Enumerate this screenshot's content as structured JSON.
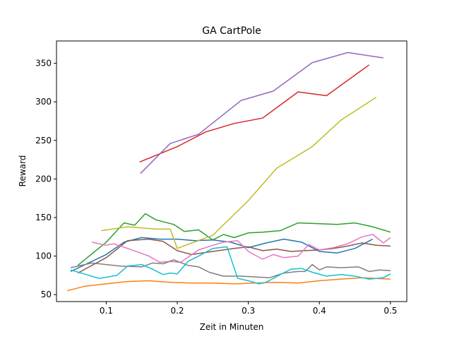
{
  "chart_data": {
    "type": "line",
    "title": "GA CartPole",
    "xlabel": "Zeit in Minuten",
    "ylabel": "Reward",
    "xlim": [
      0.03,
      0.523
    ],
    "ylim": [
      41.0,
      379.0
    ],
    "xticks": [
      0.1,
      0.2,
      0.3,
      0.4,
      0.5
    ],
    "xtick_labels": [
      "0.1",
      "0.2",
      "0.3",
      "0.4",
      "0.5"
    ],
    "yticks": [
      50,
      100,
      150,
      200,
      250,
      300,
      350
    ],
    "ytick_labels": [
      "50",
      "100",
      "150",
      "200",
      "250",
      "300",
      "350"
    ],
    "grid": false,
    "legend": "none",
    "series": [
      {
        "color": "#1f77b4",
        "x": [
          0.05,
          0.1,
          0.125,
          0.15,
          0.175,
          0.2,
          0.225,
          0.25,
          0.275,
          0.3,
          0.325,
          0.35,
          0.375,
          0.4,
          0.425,
          0.45,
          0.475
        ],
        "y": [
          80,
          102,
          118,
          124,
          122,
          122,
          120,
          121,
          118,
          111,
          117,
          122,
          118,
          106,
          104,
          110,
          122
        ]
      },
      {
        "color": "#ff7f0e",
        "x": [
          0.045,
          0.07,
          0.1,
          0.13,
          0.16,
          0.19,
          0.22,
          0.25,
          0.28,
          0.31,
          0.34,
          0.37,
          0.4,
          0.43,
          0.46,
          0.5
        ],
        "y": [
          55,
          61,
          64,
          67,
          68,
          66,
          65,
          65,
          64,
          65,
          66,
          65,
          68,
          70,
          72,
          70
        ]
      },
      {
        "color": "#2ca02c",
        "x": [
          0.06,
          0.1,
          0.125,
          0.14,
          0.155,
          0.17,
          0.195,
          0.21,
          0.23,
          0.25,
          0.265,
          0.28,
          0.3,
          0.32,
          0.345,
          0.37,
          0.4,
          0.425,
          0.45,
          0.475,
          0.5
        ],
        "y": [
          88,
          118,
          143,
          140,
          155,
          147,
          141,
          132,
          134,
          121,
          128,
          124,
          130,
          131,
          133,
          143,
          142,
          141,
          143,
          138,
          131
        ]
      },
      {
        "color": "#d62728",
        "x": [
          0.147,
          0.2,
          0.24,
          0.28,
          0.32,
          0.37,
          0.41,
          0.47
        ],
        "y": [
          222,
          242,
          261,
          272,
          279,
          313,
          308,
          348
        ]
      },
      {
        "color": "#9467bd",
        "x": [
          0.148,
          0.19,
          0.23,
          0.29,
          0.335,
          0.39,
          0.44,
          0.49
        ],
        "y": [
          207,
          246,
          258,
          302,
          314,
          351,
          364,
          357
        ]
      },
      {
        "color": "#8c564b",
        "x": [
          0.06,
          0.1,
          0.13,
          0.16,
          0.18,
          0.2,
          0.22,
          0.25,
          0.28,
          0.3,
          0.32,
          0.34,
          0.36,
          0.38,
          0.4,
          0.42,
          0.44,
          0.46,
          0.48,
          0.5
        ],
        "y": [
          78,
          98,
          120,
          122,
          119,
          107,
          102,
          106,
          110,
          112,
          107,
          109,
          106,
          107,
          108,
          110,
          113,
          117,
          114,
          113
        ]
      },
      {
        "color": "#e377c2",
        "x": [
          0.08,
          0.1,
          0.11,
          0.13,
          0.16,
          0.175,
          0.19,
          0.205,
          0.23,
          0.25,
          0.265,
          0.285,
          0.3,
          0.32,
          0.335,
          0.35,
          0.37,
          0.385,
          0.4,
          0.42,
          0.44,
          0.46,
          0.475,
          0.49,
          0.5
        ],
        "y": [
          118,
          114,
          116,
          110,
          100,
          92,
          93,
          92,
          108,
          114,
          118,
          120,
          106,
          96,
          102,
          98,
          100,
          115,
          108,
          111,
          116,
          125,
          128,
          117,
          124
        ]
      },
      {
        "color": "#7f7f7f",
        "x": [
          0.05,
          0.08,
          0.1,
          0.12,
          0.15,
          0.165,
          0.18,
          0.195,
          0.215,
          0.23,
          0.245,
          0.265,
          0.29,
          0.31,
          0.33,
          0.35,
          0.37,
          0.38,
          0.39,
          0.4,
          0.41,
          0.43,
          0.455,
          0.47,
          0.485,
          0.5
        ],
        "y": [
          85,
          91,
          89,
          87,
          86,
          91,
          90,
          95,
          88,
          86,
          79,
          74,
          74,
          73,
          72,
          78,
          80,
          80,
          89,
          82,
          86,
          85,
          86,
          80,
          82,
          81
        ]
      },
      {
        "color": "#bcbd22",
        "x": [
          0.093,
          0.13,
          0.17,
          0.19,
          0.2,
          0.25,
          0.3,
          0.34,
          0.39,
          0.43,
          0.48
        ],
        "y": [
          133,
          138,
          135,
          135,
          110,
          127,
          172,
          214,
          242,
          276,
          306
        ]
      },
      {
        "color": "#17becf",
        "x": [
          0.05,
          0.09,
          0.115,
          0.13,
          0.15,
          0.165,
          0.18,
          0.19,
          0.2,
          0.215,
          0.23,
          0.25,
          0.27,
          0.285,
          0.3,
          0.315,
          0.325,
          0.345,
          0.36,
          0.375,
          0.39,
          0.41,
          0.43,
          0.45,
          0.47,
          0.49,
          0.5
        ],
        "y": [
          82,
          71,
          75,
          87,
          89,
          83,
          76,
          78,
          77,
          93,
          100,
          110,
          112,
          71,
          68,
          64,
          66,
          76,
          83,
          84,
          79,
          74,
          76,
          74,
          70,
          72,
          77
        ]
      }
    ]
  }
}
